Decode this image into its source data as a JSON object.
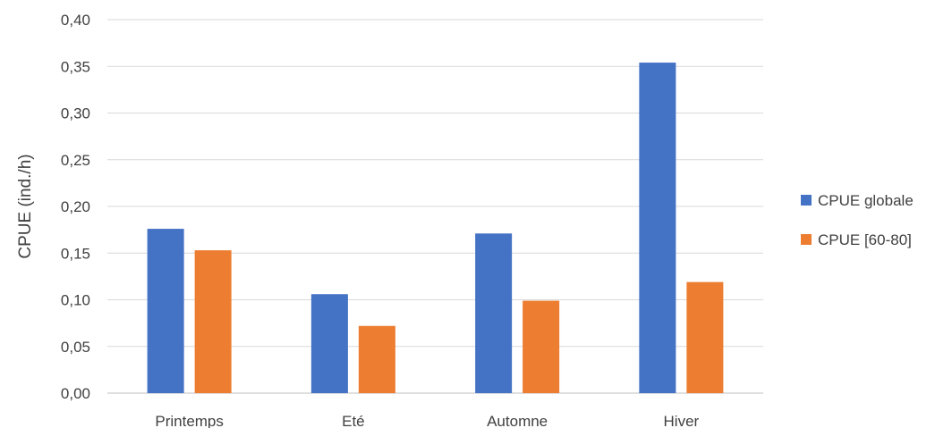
{
  "chart_data": {
    "type": "bar",
    "title": "",
    "xlabel": "",
    "ylabel": "CPUE (ind./h)",
    "categories": [
      "Printemps",
      "Eté",
      "Automne",
      "Hiver"
    ],
    "series": [
      {
        "name": "CPUE globale",
        "color": "#4472C4",
        "values": [
          0.176,
          0.106,
          0.171,
          0.354
        ]
      },
      {
        "name": "CPUE [60-80]",
        "color": "#ED7D31",
        "values": [
          0.153,
          0.072,
          0.099,
          0.119
        ]
      }
    ],
    "ylim": [
      0,
      0.4
    ],
    "yticks": [
      0.0,
      0.05,
      0.1,
      0.15,
      0.2,
      0.25,
      0.3,
      0.35,
      0.4
    ],
    "ytick_labels": [
      "0,00",
      "0,05",
      "0,10",
      "0,15",
      "0,20",
      "0,25",
      "0,30",
      "0,35",
      "0,40"
    ],
    "grid": true,
    "legend_position": "right"
  }
}
